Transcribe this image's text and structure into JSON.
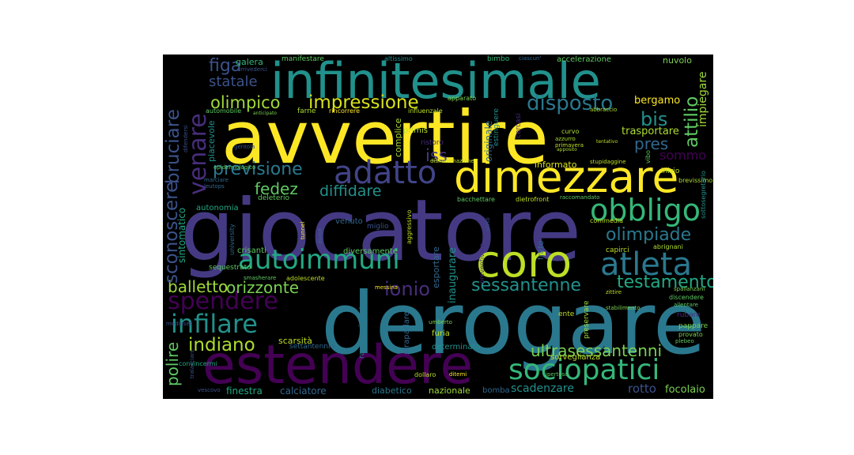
{
  "words": {
    "derogare": "derogare",
    "giocatore": "giocatore",
    "avvertire": "avvertire",
    "estendere": "estendere",
    "infinitesimale": "infinitesimale",
    "dimezzare": "dimezzare",
    "coro": "coro",
    "autoimmuni": "autoimmuni",
    "atleta": "atleta",
    "sociopatici": "sociopatici",
    "adatto": "adatto",
    "obbligo": "obbligo",
    "spendere": "spendere",
    "infilare": "infilare",
    "impressione": "impressione",
    "previsione": "previsione",
    "olimpico": "olimpico",
    "disposto": "disposto",
    "testamento": "testamento",
    "olimpiade": "olimpiade",
    "sessantenne": "sessantenne",
    "orizzonte": "orizzonte",
    "ionio": "ionio",
    "indiano": "indiano",
    "ultrasessantenni": "ultrasessantenni",
    "venare": "venare",
    "bruciare": "bruciare",
    "sconoscere": "sconoscere",
    "polire": "polire",
    "figa": "figa",
    "statale": "statale",
    "fedez": "fedez",
    "diffidare": "diffidare",
    "balletto": "balletto",
    "attilio": "attilio",
    "bis": "bis",
    "pres": "pres",
    "iss": "iss",
    "sommo": "sommo",
    "scadenzare": "scadenzare",
    "rotto": "rotto",
    "focolaio": "focolaio",
    "galera": "galera",
    "manifestare": "manifestare",
    "altissimo": "altissimo",
    "bimbo": "bimbo",
    "ciascun": "ciascun'",
    "accelerazione": "accelerazione",
    "nuovolo": "nuvolo",
    "bergamo": "bergamo",
    "trasportare": "trasportare",
    "impiegare": "impiegare",
    "informato": "informato",
    "autonomia": "autonomia",
    "deleterio": "deleterio",
    "venuto": "venuto",
    "miglio": "miglio",
    "crisanti": "crisanti",
    "diversamente": "diversamente",
    "sequestrato": "sequestrato",
    "settantennio": "settantennio",
    "determinato": "determinato",
    "scarsita": "scarsità",
    "furia": "furia",
    "sorveglianza": "sorveglianza",
    "finestra": "finestra",
    "calciatore": "calciatore",
    "diabetico": "diabetico",
    "nazionale": "nazionale",
    "bomba": "bomba",
    "capirci": "capirci",
    "abrignani": "abrignani",
    "commedia": "commedia",
    "inizio": "inizio",
    "brevissimo": "brevissimo",
    "primis": "primis",
    "complice": "complice",
    "originale": "originale",
    "bacchettare": "bacchettare",
    "dietrofront": "dietrofront",
    "inaugurare": "inaugurare",
    "esportare": "esportare",
    "straparlare": "straparlare",
    "fritto": "fritto",
    "sintomatico": "sintomatico",
    "piacevole": "piacevole",
    "automobile": "automobile",
    "farne": "farne",
    "rincorrere": "rincorrere",
    "influenzale": "influenzale",
    "apparato": "apparato",
    "abbraccio": "abbraccio",
    "curvo": "curvo",
    "azzurro": "azzurro",
    "primavera": "primavera",
    "disinformazione": "disinformazione",
    "stupidaggine": "stupidaggine",
    "epidemiologico": "epidemiologico",
    "marciare": "marciare",
    "ristoro": "ristoro",
    "ente": "ente",
    "rubare": "rubare",
    "pappare": "pappare",
    "provato": "provato",
    "adolescente": "adolescente",
    "messina": "messina",
    "dollaro": "dollaro",
    "ditemi": "ditemi",
    "umberto": "umberto",
    "preservare": "preservare",
    "stabilimento": "stabilimento",
    "spallanzani": "spallanzani",
    "discendere": "discendere",
    "allentare": "allentare",
    "plebeo": "plebeo",
    "convincermi": "convincermi",
    "vescovo": "vescovo",
    "tralasciare": "tralasciare",
    "mediaset": "mediaset",
    "difendersi": "difendersi",
    "arrivederci": "arrivederci",
    "sottosegretario": "sottosegretario",
    "estinguere": "estinguere",
    "cercasi": "cercasi",
    "tentativo": "tentativo",
    "apposito": "apposito",
    "vibo": "vibo",
    "leutops": "leutops",
    "anticipato": "anticipato",
    "tunnel": "tunnel",
    "smasherare": "smasherare",
    "university": "university",
    "sorto": "sorto",
    "raccomandato": "raccomandato",
    "iperteso": "iperteso",
    "gentola": "gentola",
    "raggiungimento": "raggiungimento",
    "zittire": "zittire",
    "aggressivo": "aggressivo",
    "divise": "divise",
    "preventivare": "preventivare"
  }
}
